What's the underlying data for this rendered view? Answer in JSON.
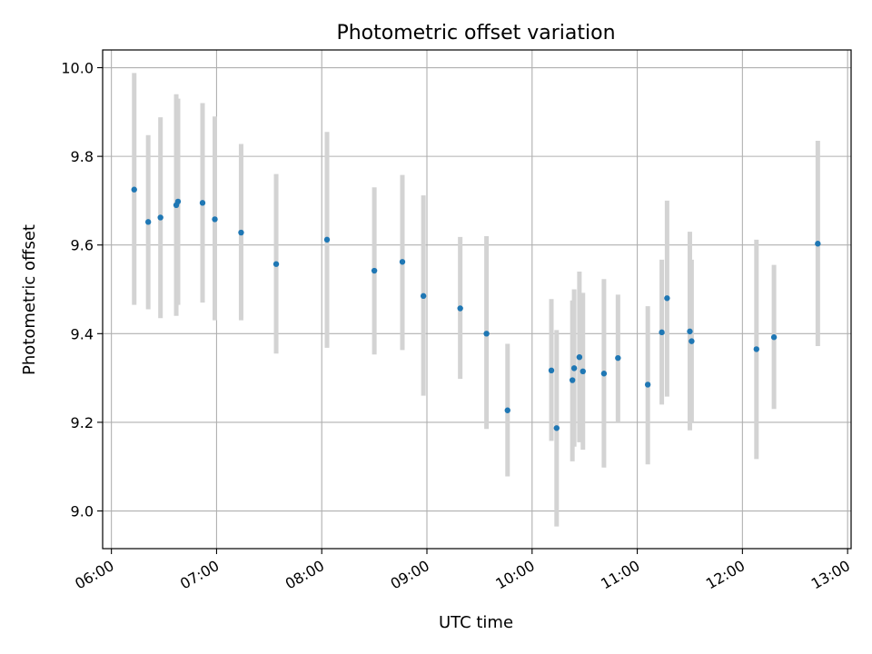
{
  "chart_data": {
    "type": "scatter",
    "title": "Photometric offset variation",
    "xlabel": "UTC time",
    "ylabel": "Photometric offset",
    "xlim": [
      "05:55",
      "13:02"
    ],
    "ylim": [
      8.915,
      10.04
    ],
    "x_ticks": [
      "06:00",
      "07:00",
      "08:00",
      "09:00",
      "10:00",
      "11:00",
      "12:00",
      "13:00"
    ],
    "y_ticks": [
      9.0,
      9.2,
      9.4,
      9.6,
      9.8,
      10.0
    ],
    "grid": true,
    "colors": {
      "point": "#1f77b4",
      "errorbar": "#d3d3d3",
      "grid": "#b0b0b0"
    },
    "points": [
      {
        "x": "06:13",
        "y": 9.725,
        "lo": 9.465,
        "hi": 9.988
      },
      {
        "x": "06:21",
        "y": 9.652,
        "lo": 9.455,
        "hi": 9.848
      },
      {
        "x": "06:28",
        "y": 9.662,
        "lo": 9.435,
        "hi": 9.888
      },
      {
        "x": "06:37",
        "y": 9.69,
        "lo": 9.44,
        "hi": 9.94
      },
      {
        "x": "06:38",
        "y": 9.698,
        "lo": 9.465,
        "hi": 9.93
      },
      {
        "x": "06:52",
        "y": 9.695,
        "lo": 9.47,
        "hi": 9.92
      },
      {
        "x": "06:59",
        "y": 9.658,
        "lo": 9.43,
        "hi": 9.89
      },
      {
        "x": "07:14",
        "y": 9.628,
        "lo": 9.43,
        "hi": 9.828
      },
      {
        "x": "07:34",
        "y": 9.557,
        "lo": 9.355,
        "hi": 9.76
      },
      {
        "x": "08:03",
        "y": 9.612,
        "lo": 9.368,
        "hi": 9.855
      },
      {
        "x": "08:30",
        "y": 9.542,
        "lo": 9.353,
        "hi": 9.73
      },
      {
        "x": "08:46",
        "y": 9.562,
        "lo": 9.363,
        "hi": 9.758
      },
      {
        "x": "08:58",
        "y": 9.485,
        "lo": 9.26,
        "hi": 9.712
      },
      {
        "x": "09:19",
        "y": 9.457,
        "lo": 9.298,
        "hi": 9.618
      },
      {
        "x": "09:34",
        "y": 9.4,
        "lo": 9.185,
        "hi": 9.62
      },
      {
        "x": "09:46",
        "y": 9.227,
        "lo": 9.078,
        "hi": 9.377
      },
      {
        "x": "10:11",
        "y": 9.317,
        "lo": 9.158,
        "hi": 9.478
      },
      {
        "x": "10:14",
        "y": 9.187,
        "lo": 8.965,
        "hi": 9.408
      },
      {
        "x": "10:23",
        "y": 9.295,
        "lo": 9.112,
        "hi": 9.475
      },
      {
        "x": "10:24",
        "y": 9.322,
        "lo": 9.145,
        "hi": 9.5
      },
      {
        "x": "10:27",
        "y": 9.347,
        "lo": 9.155,
        "hi": 9.54
      },
      {
        "x": "10:29",
        "y": 9.315,
        "lo": 9.138,
        "hi": 9.492
      },
      {
        "x": "10:41",
        "y": 9.31,
        "lo": 9.098,
        "hi": 9.523
      },
      {
        "x": "10:49",
        "y": 9.345,
        "lo": 9.2,
        "hi": 9.488
      },
      {
        "x": "11:06",
        "y": 9.285,
        "lo": 9.105,
        "hi": 9.462
      },
      {
        "x": "11:14",
        "y": 9.403,
        "lo": 9.24,
        "hi": 9.567
      },
      {
        "x": "11:17",
        "y": 9.48,
        "lo": 9.258,
        "hi": 9.7
      },
      {
        "x": "11:30",
        "y": 9.405,
        "lo": 9.182,
        "hi": 9.63
      },
      {
        "x": "11:31",
        "y": 9.383,
        "lo": 9.2,
        "hi": 9.567
      },
      {
        "x": "12:08",
        "y": 9.365,
        "lo": 9.117,
        "hi": 9.612
      },
      {
        "x": "12:18",
        "y": 9.392,
        "lo": 9.23,
        "hi": 9.555
      },
      {
        "x": "12:43",
        "y": 9.603,
        "lo": 9.372,
        "hi": 9.835
      }
    ]
  }
}
